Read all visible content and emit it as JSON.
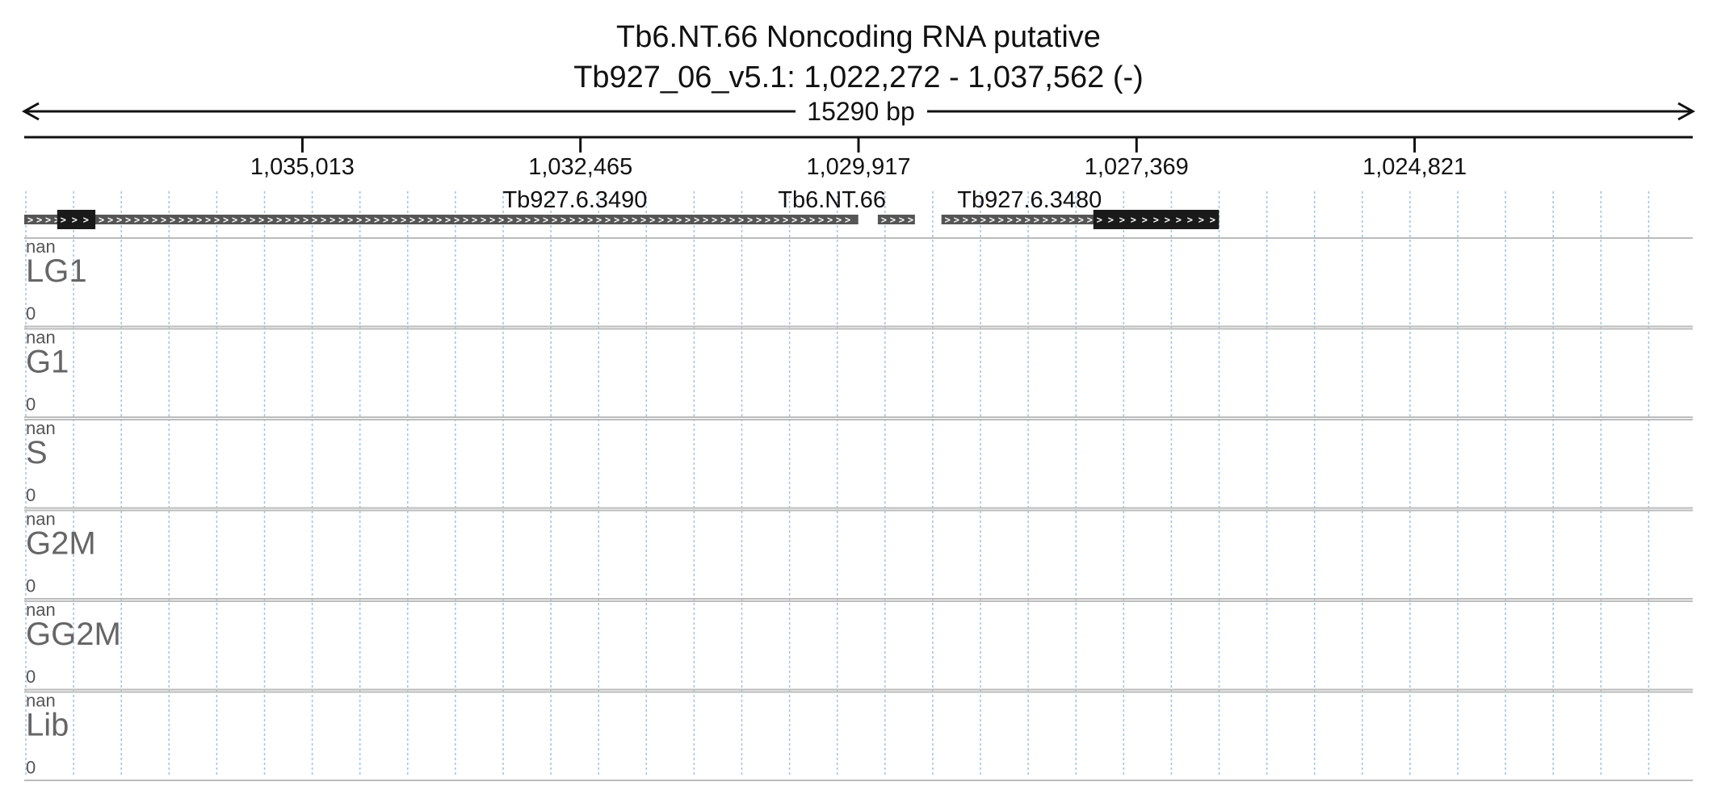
{
  "header": {
    "title": "Tb6.NT.66  Noncoding RNA  putative",
    "locus": "Tb927_06_v5.1: 1,022,272 - 1,037,562 (-)",
    "span_label": "15290 bp"
  },
  "ruler": {
    "start": 1037562,
    "end": 1022272,
    "ticks": [
      "1,035,013",
      "1,032,465",
      "1,029,917",
      "1,027,369",
      "1,024,821"
    ]
  },
  "genes": [
    {
      "name": "Tb927.6.3490",
      "label": "Tb927.6.3490",
      "show_label": true,
      "utr_start": 1037562,
      "utr_end": 1029919,
      "cds_start": 1037260,
      "cds_end": 1036910
    },
    {
      "name": "Tb6.NT.66",
      "label": "Tb6.NT.66",
      "show_label": true,
      "utr_start": 1029740,
      "utr_end": 1029400,
      "cds_start": null,
      "cds_end": null
    },
    {
      "name": "Tb927.6.3480",
      "label": "Tb927.6.3480",
      "show_label": true,
      "utr_start": 1029157,
      "utr_end": 1026614,
      "cds_start": 1027765,
      "cds_end": 1026614
    }
  ],
  "tracks": [
    {
      "name": "LG1",
      "max_label": "nan",
      "min_label": "0"
    },
    {
      "name": "G1",
      "max_label": "nan",
      "min_label": "0"
    },
    {
      "name": "S",
      "max_label": "nan",
      "min_label": "0"
    },
    {
      "name": "G2M",
      "max_label": "nan",
      "min_label": "0"
    },
    {
      "name": "GG2M",
      "max_label": "nan",
      "min_label": "0"
    },
    {
      "name": "Lib",
      "max_label": "nan",
      "min_label": "0"
    }
  ],
  "colors": {
    "utr": "#555555",
    "cds": "#1a1a1a",
    "grid": "#9cc3e6",
    "track_border": "#bbbbbb",
    "track_label": "#666666"
  }
}
